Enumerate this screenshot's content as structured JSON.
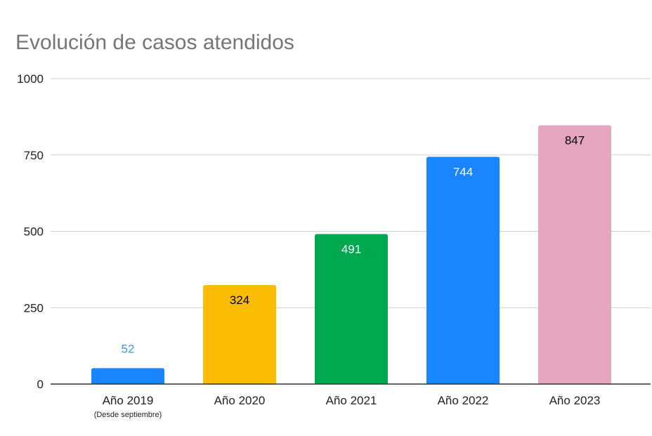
{
  "chart_data": {
    "type": "bar",
    "title": "Evolución de casos atendidos",
    "categories": [
      "Año 2019",
      "Año 2020",
      "Año 2021",
      "Año 2022",
      "Año 2023"
    ],
    "category_sublabels": [
      "(Desde septiembre)",
      "",
      "",
      "",
      ""
    ],
    "values": [
      52,
      324,
      491,
      744,
      847
    ],
    "data_labels": [
      "52",
      "324",
      "491",
      "744",
      "847"
    ],
    "colors": [
      "#1a85ff",
      "#fbbc04",
      "#00a84f",
      "#1a85ff",
      "#e5a6bf"
    ],
    "label_colors": [
      "#3d94f0",
      "#000000",
      "#ffffff",
      "#ffffff",
      "#000000"
    ],
    "ylim": [
      0,
      1000
    ],
    "yticks": [
      "0",
      "250",
      "500",
      "750",
      "1000"
    ],
    "xlabel": "",
    "ylabel": "",
    "grid": true,
    "legend": "none"
  }
}
